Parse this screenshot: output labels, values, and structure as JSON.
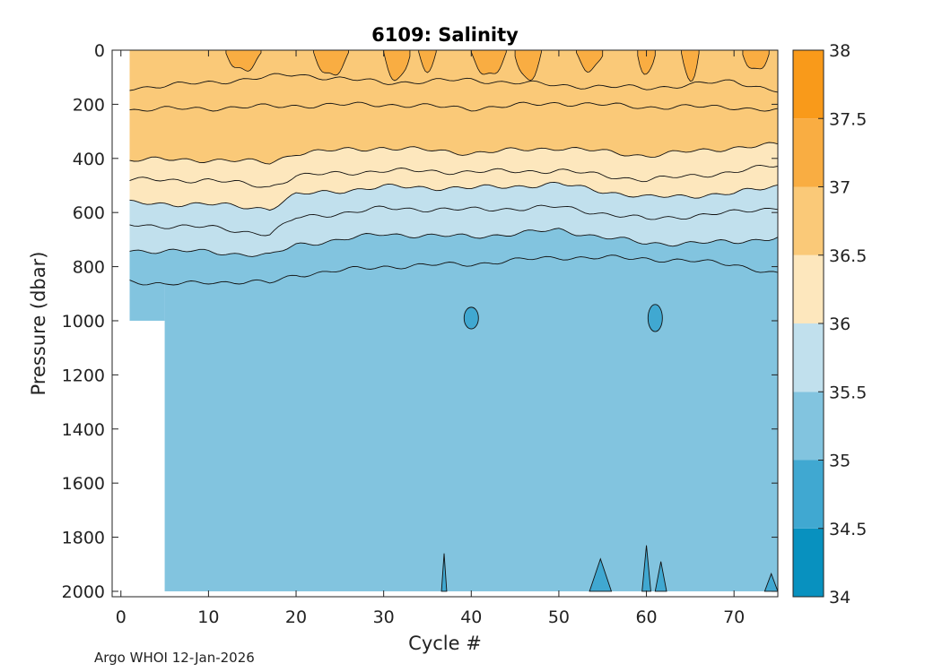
{
  "chart_data": {
    "type": "heatmap",
    "title": "6109:  Salinity",
    "xlabel": "Cycle #",
    "ylabel": "Pressure (dbar)",
    "xlim": [
      -1,
      75
    ],
    "ylim": [
      2020,
      0
    ],
    "xticks": [
      "0",
      "10",
      "20",
      "30",
      "40",
      "50",
      "60",
      "70"
    ],
    "yticks": [
      "0",
      "200",
      "400",
      "600",
      "800",
      "1000",
      "1200",
      "1400",
      "1600",
      "1800",
      "2000"
    ],
    "colorbar": {
      "ticks": [
        "34",
        "34.5",
        "35",
        "35.5",
        "36",
        "36.5",
        "37",
        "37.5",
        "38"
      ],
      "levels": [
        {
          "range": [
            34.0,
            34.5
          ],
          "color": "#0891bf"
        },
        {
          "range": [
            34.5,
            35.0
          ],
          "color": "#40a8d1"
        },
        {
          "range": [
            35.0,
            35.5
          ],
          "color": "#82c4df"
        },
        {
          "range": [
            35.5,
            36.0
          ],
          "color": "#c1e0ed"
        },
        {
          "range": [
            36.0,
            36.5
          ],
          "color": "#fde7bd"
        },
        {
          "range": [
            36.5,
            37.0
          ],
          "color": "#fac978"
        },
        {
          "range": [
            37.0,
            37.5
          ],
          "color": "#f9ad42"
        },
        {
          "range": [
            37.5,
            38.0
          ],
          "color": "#f99a1a"
        }
      ]
    },
    "profile_start_cycle": 1,
    "deep_profile_start_cycle": 5,
    "shallow_max_pressure": 1000,
    "deep_max_pressure": 2000,
    "contour_depths": [
      {
        "salinity": 37.0,
        "cycles": [
          1,
          10,
          20,
          30,
          40,
          50,
          60,
          70,
          75
        ],
        "pressure": [
          140,
          120,
          90,
          120,
          110,
          130,
          140,
          115,
          150
        ]
      },
      {
        "salinity": 36.5,
        "cycles": [
          1,
          10,
          20,
          30,
          40,
          50,
          60,
          70,
          75
        ],
        "pressure": [
          220,
          215,
          205,
          200,
          215,
          195,
          210,
          210,
          225
        ]
      },
      {
        "salinity": 36.0,
        "cycles": [
          1,
          10,
          17,
          20,
          30,
          40,
          50,
          60,
          70,
          75
        ],
        "pressure": [
          405,
          405,
          415,
          380,
          360,
          380,
          360,
          390,
          360,
          350
        ]
      },
      {
        "salinity": 35.75,
        "cycles": [
          1,
          10,
          17,
          20,
          30,
          40,
          50,
          60,
          70,
          75
        ],
        "pressure": [
          480,
          480,
          505,
          465,
          445,
          450,
          445,
          480,
          450,
          425
        ]
      },
      {
        "salinity": 35.5,
        "cycles": [
          1,
          10,
          17,
          20,
          30,
          40,
          50,
          60,
          70,
          75
        ],
        "pressure": [
          565,
          570,
          585,
          535,
          505,
          510,
          495,
          545,
          530,
          500
        ]
      },
      {
        "salinity": 35.25,
        "cycles": [
          1,
          10,
          17,
          20,
          30,
          40,
          50,
          60,
          70,
          75
        ],
        "pressure": [
          645,
          655,
          680,
          620,
          585,
          590,
          580,
          625,
          600,
          580
        ]
      },
      {
        "salinity": 35.0,
        "cycles": [
          1,
          10,
          17,
          20,
          30,
          40,
          50,
          60,
          70,
          75
        ],
        "pressure": [
          740,
          745,
          760,
          720,
          680,
          690,
          665,
          715,
          710,
          690
        ]
      },
      {
        "salinity": 34.9,
        "cycles": [
          1,
          5,
          10,
          17,
          20,
          30,
          40,
          50,
          60,
          70,
          75
        ],
        "pressure": [
          850,
          870,
          855,
          860,
          830,
          800,
          790,
          765,
          770,
          790,
          830
        ]
      }
    ],
    "surface_high_salinity_cycles": [
      [
        12,
        16
      ],
      [
        22,
        26
      ],
      [
        30,
        33
      ],
      [
        34,
        36
      ],
      [
        40,
        44
      ],
      [
        45,
        48
      ],
      [
        52,
        55
      ],
      [
        59,
        61
      ],
      [
        64,
        66
      ],
      [
        71,
        74
      ]
    ],
    "mid_depth_low_patches": [
      {
        "cycle": 40,
        "pressure_range": [
          950,
          1030
        ]
      },
      {
        "cycle": 61,
        "pressure_range": [
          940,
          1040
        ]
      }
    ],
    "bottom_low_patches": [
      {
        "cycles": [
          36.6,
          37.2
        ],
        "pressure_top": 1860
      },
      {
        "cycles": [
          53.5,
          56
        ],
        "pressure_top": 1880
      },
      {
        "cycles": [
          59.5,
          60.5
        ],
        "pressure_top": 1830
      },
      {
        "cycles": [
          61,
          62.3
        ],
        "pressure_top": 1890
      },
      {
        "cycles": [
          73.5,
          75
        ],
        "pressure_top": 1935
      }
    ]
  },
  "footer": "Argo WHOI 12-Jan-2026"
}
